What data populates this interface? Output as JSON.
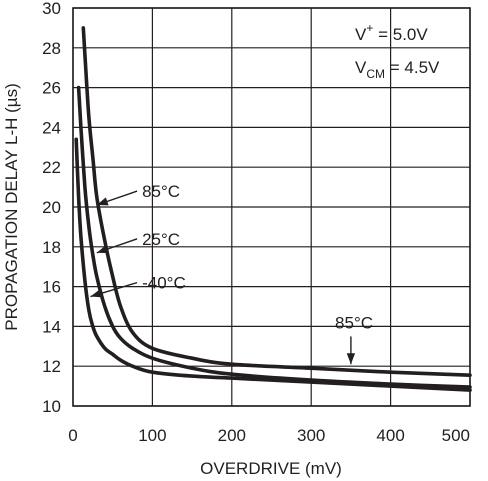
{
  "chart_data": {
    "type": "line",
    "title": "",
    "xlabel": "OVERDRIVE (mV)",
    "ylabel": "PROPAGATION DELAY L-H (µs)",
    "xlim": [
      0,
      500
    ],
    "ylim": [
      10,
      30
    ],
    "x_ticks": [
      0,
      100,
      200,
      300,
      400,
      500
    ],
    "y_ticks": [
      10,
      12,
      14,
      16,
      18,
      20,
      22,
      24,
      26,
      28,
      30
    ],
    "grid": true,
    "legend": "none",
    "conditions": {
      "vplus": {
        "base": "V",
        "sup": "+",
        "value": " = 5.0V"
      },
      "vcm": {
        "base": "V",
        "sub": "CM",
        "value": " = 4.5V"
      }
    },
    "series": [
      {
        "name": "85°C",
        "x": [
          13,
          16,
          20,
          25,
          30,
          40,
          50,
          60,
          75,
          100,
          150,
          200,
          300,
          400,
          500
        ],
        "y": [
          29.0,
          27.0,
          24.5,
          22.5,
          20.5,
          18.3,
          16.5,
          15.0,
          13.7,
          12.9,
          12.4,
          12.1,
          11.9,
          11.7,
          11.55
        ]
      },
      {
        "name": "25°C",
        "x": [
          7,
          10,
          15,
          20,
          25,
          30,
          40,
          50,
          60,
          75,
          100,
          150,
          200,
          300,
          400,
          500
        ],
        "y": [
          26.0,
          24.0,
          21.0,
          19.0,
          17.6,
          16.5,
          15.0,
          14.0,
          13.4,
          12.9,
          12.4,
          11.9,
          11.6,
          11.3,
          11.1,
          10.95
        ]
      },
      {
        "name": "-40°C",
        "x": [
          4,
          7,
          10,
          15,
          20,
          25,
          30,
          40,
          50,
          60,
          75,
          100,
          150,
          200,
          300,
          400,
          500
        ],
        "y": [
          23.4,
          20.5,
          18.5,
          16.3,
          14.8,
          14.0,
          13.5,
          12.9,
          12.6,
          12.3,
          12.0,
          11.7,
          11.5,
          11.4,
          11.2,
          11.0,
          10.8
        ]
      }
    ],
    "annotations": [
      {
        "text": "85°C",
        "series": "85°C",
        "text_at": [
          82,
          20.8
        ],
        "arrow_to": [
          30,
          20.1
        ]
      },
      {
        "text": "25°C",
        "series": "25°C",
        "text_at": [
          82,
          18.4
        ],
        "arrow_to": [
          30,
          17.7
        ]
      },
      {
        "text": "-40°C",
        "series": "-40°C",
        "text_at": [
          82,
          16.2
        ],
        "arrow_to": [
          22,
          15.5
        ]
      },
      {
        "text": "85°C",
        "series": "85°C",
        "text_at": [
          325,
          14.2
        ],
        "arrow_to": [
          350,
          12.1
        ]
      }
    ]
  }
}
